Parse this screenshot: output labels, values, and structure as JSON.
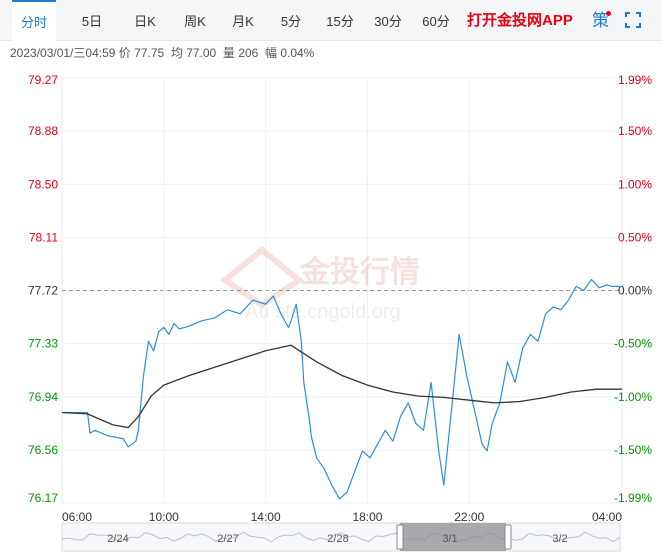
{
  "tabs": [
    {
      "label": "分时",
      "active": true
    },
    {
      "label": "5日"
    },
    {
      "label": "日K"
    },
    {
      "label": "周K"
    },
    {
      "label": "月K"
    },
    {
      "label": "5分"
    },
    {
      "label": "15分"
    },
    {
      "label": "30分"
    },
    {
      "label": "60分"
    }
  ],
  "app_link": "打开金投网APP",
  "strategy_label": "策",
  "info": {
    "datetime": "2023/03/01/三04:59",
    "price_label": "价",
    "price": "77.75",
    "avg_label": "均",
    "avg": "77.00",
    "volume_label": "量",
    "volume": "206",
    "change_label": "幅",
    "change": "0.04%"
  },
  "watermark": {
    "brand": "金投行情",
    "site": "Au    ste.cngold.org"
  },
  "colors": {
    "up": "#e60012",
    "down": "#009900",
    "neutral": "#333333",
    "price_line": "#2f8fd6",
    "avg_line": "#333333"
  },
  "chart_data": {
    "type": "line",
    "prev_close": 77.72,
    "ylim": [
      76.17,
      79.27
    ],
    "y_ticks": [
      "79.27",
      "78.88",
      "78.50",
      "78.11",
      "77.72",
      "77.33",
      "76.94",
      "76.56",
      "76.17"
    ],
    "pct_ticks": [
      "1.99%",
      "1.50%",
      "1.00%",
      "0.50%",
      "0.00%",
      "-0.50%",
      "-1.00%",
      "-1.50%",
      "-1.99%"
    ],
    "x_ticks": [
      "06:00",
      "10:00",
      "14:00",
      "18:00",
      "22:00",
      "04:00"
    ],
    "xlim_hours": [
      0,
      22
    ],
    "series": [
      {
        "key": "price",
        "x": [
          0,
          1.0,
          1.1,
          1.3,
          1.8,
          2.4,
          2.6,
          2.9,
          3.0,
          3.1,
          3.2,
          3.4,
          3.6,
          3.8,
          4.0,
          4.2,
          4.4,
          4.6,
          5.0,
          5.5,
          6.0,
          6.5,
          7.0,
          7.5,
          8.0,
          8.3,
          8.6,
          8.9,
          9.0,
          9.2,
          9.4,
          9.5,
          9.7,
          9.8,
          10.0,
          10.3,
          10.6,
          10.9,
          11.2,
          11.5,
          11.8,
          12.1,
          12.4,
          12.7,
          13.0,
          13.3,
          13.6,
          13.9,
          14.2,
          14.5,
          14.8,
          15.0,
          15.3,
          15.6,
          15.9,
          16.2,
          16.5,
          16.7,
          16.9,
          17.2,
          17.5,
          17.8,
          18.1,
          18.4,
          18.7,
          19.0,
          19.3,
          19.6,
          19.9,
          20.2,
          20.5,
          20.8,
          21.1,
          21.4,
          21.6,
          21.8,
          22.0
        ],
        "values": [
          76.83,
          76.83,
          76.68,
          76.7,
          76.66,
          76.64,
          76.58,
          76.62,
          76.7,
          76.9,
          77.1,
          77.35,
          77.28,
          77.42,
          77.45,
          77.4,
          77.48,
          77.44,
          77.46,
          77.5,
          77.52,
          77.58,
          77.55,
          77.65,
          77.62,
          77.68,
          77.55,
          77.45,
          77.5,
          77.62,
          77.35,
          77.05,
          76.8,
          76.65,
          76.5,
          76.42,
          76.3,
          76.2,
          76.25,
          76.4,
          76.55,
          76.5,
          76.6,
          76.7,
          76.62,
          76.8,
          76.9,
          76.75,
          76.7,
          77.05,
          76.55,
          76.3,
          76.85,
          77.4,
          77.1,
          76.85,
          76.6,
          76.55,
          76.75,
          76.9,
          77.2,
          77.05,
          77.3,
          77.4,
          77.35,
          77.55,
          77.6,
          77.58,
          77.65,
          77.75,
          77.72,
          77.8,
          77.74,
          77.76,
          77.75,
          77.75,
          77.75
        ]
      },
      {
        "key": "avg",
        "x": [
          0,
          1.0,
          2.0,
          2.6,
          3.0,
          3.5,
          4.0,
          5.0,
          6.0,
          7.0,
          8.0,
          9.0,
          10.0,
          11.0,
          12.0,
          13.0,
          14.0,
          15.0,
          16.0,
          17.0,
          18.0,
          19.0,
          20.0,
          21.0,
          22.0
        ],
        "values": [
          76.83,
          76.82,
          76.74,
          76.72,
          76.8,
          76.95,
          77.03,
          77.1,
          77.16,
          77.22,
          77.28,
          77.32,
          77.2,
          77.1,
          77.03,
          76.98,
          76.95,
          76.94,
          76.92,
          76.9,
          76.91,
          76.94,
          76.98,
          77.0,
          77.0
        ]
      }
    ]
  },
  "navigator": {
    "labels": [
      "2/24",
      "2/27",
      "2/28",
      "3/1",
      "3/2"
    ]
  }
}
